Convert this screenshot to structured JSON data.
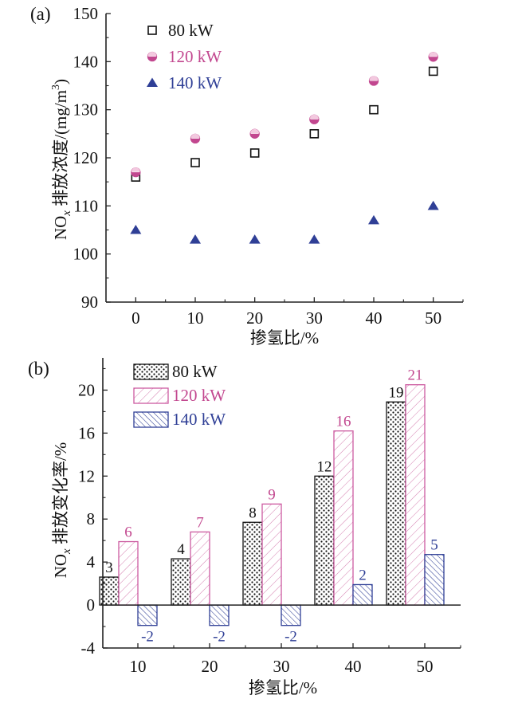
{
  "colors": {
    "s80": "#111111",
    "s120": "#c2478f",
    "s140": "#2f3f96",
    "axis": "#222222"
  },
  "chart_data": [
    {
      "panel_label": "(a)",
      "type": "scatter",
      "title": "",
      "xlabel": "掺氢比/%",
      "ylabel_main": "NO",
      "ylabel_sub": "x",
      "ylabel_rest": " 排放浓度/(mg/m",
      "ylabel_sup": "3",
      "ylabel_close": ")",
      "xlim": [
        -5,
        55
      ],
      "ylim": [
        90,
        150
      ],
      "xticks": [
        0,
        10,
        20,
        30,
        40,
        50
      ],
      "xtick_labels": [
        "0",
        "10",
        "20",
        "30",
        "40",
        "50"
      ],
      "yticks": [
        90,
        100,
        110,
        120,
        130,
        140,
        150
      ],
      "ytick_labels": [
        "90",
        "100",
        "110",
        "120",
        "130",
        "140",
        "150"
      ],
      "grid": false,
      "legend_position": "top-left",
      "x": [
        0,
        10,
        20,
        30,
        40,
        50
      ],
      "series": [
        {
          "name": "80 kW",
          "marker": "open-square",
          "values": [
            116,
            119,
            121,
            125,
            130,
            138
          ]
        },
        {
          "name": "120 kW",
          "marker": "half-filled-circle",
          "values": [
            117,
            124,
            125,
            128,
            136,
            141
          ]
        },
        {
          "name": "140 kW",
          "marker": "filled-triangle",
          "values": [
            105,
            103,
            103,
            103,
            107,
            110
          ]
        }
      ]
    },
    {
      "panel_label": "(b)",
      "type": "bar",
      "title": "",
      "xlabel": "掺氢比/%",
      "ylabel_main": "NO",
      "ylabel_sub": "x",
      "ylabel_rest": " 排放变化率/%",
      "categories": [
        "10",
        "20",
        "30",
        "40",
        "50"
      ],
      "xlim": [
        5,
        55
      ],
      "ylim": [
        -4,
        23
      ],
      "yticks": [
        -4,
        0,
        4,
        8,
        12,
        16,
        20
      ],
      "ytick_labels": [
        "-4",
        "0",
        "4",
        "8",
        "12",
        "16",
        "20"
      ],
      "grid": false,
      "legend_position": "top-left",
      "series": [
        {
          "name": "80 kW",
          "pattern": "dots",
          "values": [
            2.6,
            4.3,
            7.7,
            12.0,
            18.9
          ],
          "labels": [
            "3",
            "4",
            "8",
            "12",
            "19"
          ]
        },
        {
          "name": "120 kW",
          "pattern": "forward-hatch",
          "values": [
            5.9,
            6.8,
            9.4,
            16.2,
            20.5
          ],
          "labels": [
            "6",
            "7",
            "9",
            "16",
            "21"
          ]
        },
        {
          "name": "140 kW",
          "pattern": "back-hatch",
          "values": [
            -1.9,
            -1.9,
            -1.9,
            1.9,
            4.7
          ],
          "labels": [
            "-2",
            "-2",
            "-2",
            "2",
            "5"
          ]
        }
      ]
    }
  ]
}
